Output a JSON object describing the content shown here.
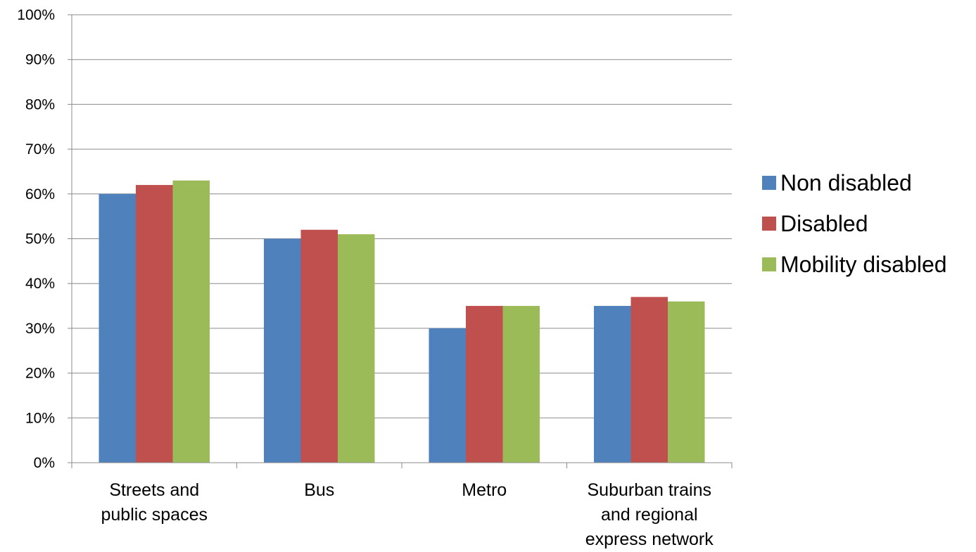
{
  "chart_data": {
    "type": "bar",
    "categories": [
      [
        "Streets and",
        "public spaces"
      ],
      [
        "Bus"
      ],
      [
        "Metro"
      ],
      [
        "Suburban trains",
        "and regional",
        "express network"
      ]
    ],
    "series": [
      {
        "name": "Non disabled",
        "color": "#4f81bd",
        "values": [
          60,
          50,
          30,
          35
        ]
      },
      {
        "name": "Disabled",
        "color": "#c0504d",
        "values": [
          62,
          52,
          35,
          37
        ]
      },
      {
        "name": "Mobility disabled",
        "color": "#9bbb59",
        "values": [
          63,
          51,
          35,
          36
        ]
      }
    ],
    "yticks": [
      "0%",
      "10%",
      "20%",
      "30%",
      "40%",
      "50%",
      "60%",
      "70%",
      "80%",
      "90%",
      "100%"
    ],
    "ylim": [
      0,
      100
    ],
    "grid": true,
    "legend_position": "right"
  }
}
